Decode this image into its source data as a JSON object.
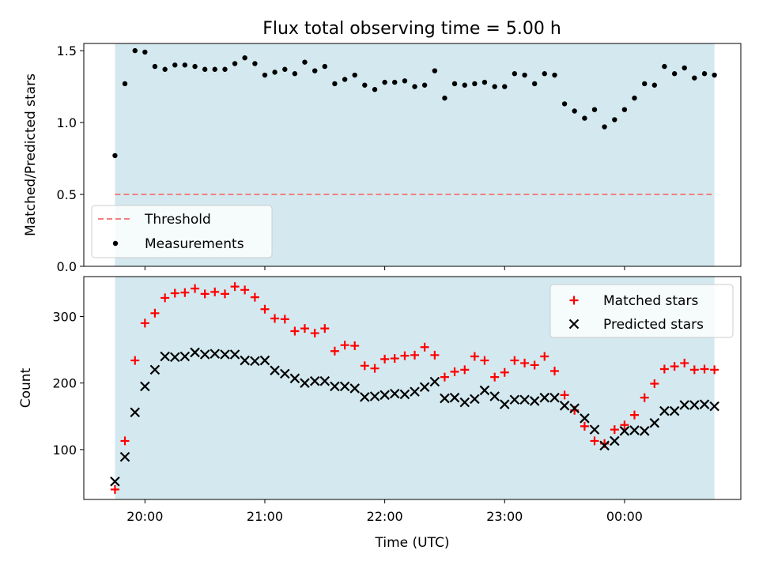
{
  "title": "Flux total observing time = 5.00 h",
  "colors": {
    "shade": "#d3e9ef",
    "threshold": "#f08080",
    "measurements": "#000000",
    "matched": "#ff0000",
    "predicted": "#000000"
  },
  "chart_data": [
    {
      "type": "scatter",
      "name": "top-panel",
      "ylabel": "Matched/Predicted stars",
      "xlabel": "",
      "ylim": [
        0.0,
        1.55
      ],
      "yticks": [
        0.0,
        0.5,
        1.0,
        1.5
      ],
      "ytick_labels": [
        "0.0",
        "0.5",
        "1.0",
        "1.5"
      ],
      "xlim_hours": [
        19.49,
        24.97
      ],
      "shaded_span_hours": [
        19.75,
        24.75
      ],
      "legend_location": "lower-left",
      "threshold": 0.5,
      "legend": {
        "threshold_label": "Threshold",
        "measurements_label": "Measurements"
      },
      "x_hours": [
        19.75,
        19.833,
        19.917,
        20.0,
        20.083,
        20.167,
        20.25,
        20.333,
        20.417,
        20.5,
        20.583,
        20.667,
        20.75,
        20.833,
        20.917,
        21.0,
        21.083,
        21.167,
        21.25,
        21.333,
        21.417,
        21.5,
        21.583,
        21.667,
        21.75,
        21.833,
        21.917,
        22.0,
        22.083,
        22.167,
        22.25,
        22.333,
        22.417,
        22.5,
        22.583,
        22.667,
        22.75,
        22.833,
        22.917,
        23.0,
        23.083,
        23.167,
        23.25,
        23.333,
        23.417,
        23.5,
        23.583,
        23.667,
        23.75,
        23.833,
        23.917,
        24.0,
        24.083,
        24.167,
        24.25,
        24.333,
        24.417,
        24.5,
        24.583,
        24.667,
        24.75
      ],
      "ratio": [
        0.77,
        1.27,
        1.5,
        1.49,
        1.39,
        1.37,
        1.4,
        1.4,
        1.39,
        1.37,
        1.37,
        1.37,
        1.41,
        1.45,
        1.41,
        1.33,
        1.35,
        1.37,
        1.34,
        1.42,
        1.36,
        1.39,
        1.27,
        1.3,
        1.33,
        1.26,
        1.23,
        1.28,
        1.28,
        1.29,
        1.25,
        1.26,
        1.36,
        1.17,
        1.27,
        1.26,
        1.27,
        1.28,
        1.25,
        1.25,
        1.34,
        1.33,
        1.27,
        1.34,
        1.33,
        1.13,
        1.08,
        1.03,
        1.09,
        0.97,
        1.02,
        1.09,
        1.17,
        1.27,
        1.26,
        1.39,
        1.34,
        1.38,
        1.31,
        1.34,
        1.33
      ]
    },
    {
      "type": "scatter",
      "name": "bottom-panel",
      "xlabel": "Time (UTC)",
      "ylabel": "Count",
      "ylim": [
        25,
        360
      ],
      "yticks": [
        100,
        200,
        300
      ],
      "ytick_labels": [
        "100",
        "200",
        "300"
      ],
      "xticks_hours": [
        20,
        21,
        22,
        23,
        24
      ],
      "xtick_labels": [
        "20:00",
        "21:00",
        "22:00",
        "23:00",
        "00:00"
      ],
      "xlim_hours": [
        19.49,
        24.97
      ],
      "shaded_span_hours": [
        19.75,
        24.75
      ],
      "legend_location": "upper-right",
      "series": [
        {
          "name": "Matched stars",
          "marker": "+",
          "values": [
            40,
            113,
            234,
            290,
            305,
            328,
            335,
            336,
            342,
            334,
            337,
            334,
            345,
            340,
            329,
            311,
            297,
            296,
            278,
            282,
            275,
            282,
            248,
            257,
            256,
            226,
            222,
            236,
            237,
            241,
            242,
            254,
            242,
            209,
            217,
            220,
            240,
            234,
            209,
            216,
            234,
            230,
            227,
            240,
            218,
            182,
            159,
            135,
            113,
            109,
            130,
            137,
            152,
            178,
            199,
            221,
            225,
            230,
            220,
            221,
            220
          ]
        },
        {
          "name": "Predicted stars",
          "marker": "x",
          "values": [
            52,
            89,
            156,
            195,
            220,
            240,
            239,
            240,
            246,
            243,
            244,
            243,
            243,
            234,
            233,
            234,
            219,
            214,
            207,
            200,
            203,
            203,
            195,
            195,
            192,
            179,
            180,
            182,
            184,
            183,
            187,
            194,
            202,
            177,
            178,
            171,
            176,
            189,
            180,
            168,
            175,
            175,
            173,
            178,
            178,
            166,
            162,
            147,
            130,
            106,
            113,
            128,
            129,
            128,
            140,
            158,
            158,
            167,
            167,
            168,
            165
          ]
        }
      ]
    }
  ]
}
